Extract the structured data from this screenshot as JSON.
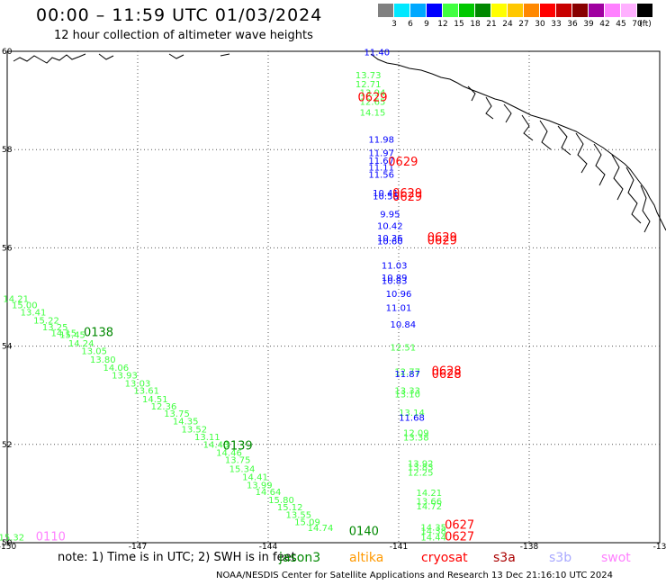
{
  "header": {
    "title": "00:00 – 11:59 UTC 01/03/2024",
    "subtitle": "12 hour collection of altimeter wave heights"
  },
  "colorbar": {
    "unit": "(ft)",
    "colors": [
      "#808080",
      "#00e8ff",
      "#00a8ff",
      "#0000ff",
      "#40ff40",
      "#00c800",
      "#008800",
      "#ffff00",
      "#ffc800",
      "#ff8800",
      "#ff0000",
      "#c80000",
      "#880000",
      "#a000a0",
      "#ff80ff",
      "#ffb0ff",
      "#000000"
    ],
    "labels": [
      "3",
      "6",
      "9",
      "12",
      "15",
      "18",
      "21",
      "24",
      "27",
      "30",
      "33",
      "36",
      "39",
      "42",
      "45",
      "70"
    ]
  },
  "map": {
    "lon_ticks": [
      "-150",
      "-147",
      "-144",
      "-141",
      "-138",
      "-13"
    ],
    "lat_ticks": [
      "60",
      "58",
      "56",
      "54",
      "52",
      "50"
    ],
    "lon_range": [
      -150,
      -135
    ],
    "lat_range": [
      50,
      60
    ],
    "grid": true
  },
  "observations": [
    {
      "lon": -141.5,
      "lat": 59.92,
      "text": "11.40",
      "color": "#0000ff"
    },
    {
      "lon": -141.7,
      "lat": 59.45,
      "text": "13.73",
      "color": "#40ff40"
    },
    {
      "lon": -141.7,
      "lat": 59.27,
      "text": "12.71",
      "color": "#40ff40"
    },
    {
      "lon": -141.6,
      "lat": 59.09,
      "text": "13.94",
      "color": "#40ff40"
    },
    {
      "lon": -141.6,
      "lat": 58.91,
      "text": "12.65",
      "color": "#40ff40"
    },
    {
      "lon": -141.6,
      "lat": 58.69,
      "text": "14.15",
      "color": "#40ff40"
    },
    {
      "lon": -141.4,
      "lat": 58.14,
      "text": "11.98",
      "color": "#0000ff"
    },
    {
      "lon": -141.4,
      "lat": 57.87,
      "text": "11.97",
      "color": "#0000ff"
    },
    {
      "lon": -141.4,
      "lat": 57.71,
      "text": "11.67",
      "color": "#0000ff"
    },
    {
      "lon": -141.4,
      "lat": 57.57,
      "text": "11.11",
      "color": "#0000ff"
    },
    {
      "lon": -141.4,
      "lat": 57.43,
      "text": "11.56",
      "color": "#0000ff"
    },
    {
      "lon": -141.3,
      "lat": 57.05,
      "text": "10.41",
      "color": "#0000ff"
    },
    {
      "lon": -141.3,
      "lat": 56.99,
      "text": "10.56",
      "color": "#0000ff"
    },
    {
      "lon": -141.2,
      "lat": 56.62,
      "text": "9.95",
      "color": "#0000ff"
    },
    {
      "lon": -141.2,
      "lat": 56.38,
      "text": "10.42",
      "color": "#0000ff"
    },
    {
      "lon": -141.2,
      "lat": 56.14,
      "text": "10.36",
      "color": "#0000ff"
    },
    {
      "lon": -141.2,
      "lat": 56.07,
      "text": "10.60",
      "color": "#0000ff"
    },
    {
      "lon": -141.1,
      "lat": 55.58,
      "text": "11.03",
      "color": "#0000ff"
    },
    {
      "lon": -141.1,
      "lat": 55.33,
      "text": "10.89",
      "color": "#0000ff"
    },
    {
      "lon": -141.1,
      "lat": 55.27,
      "text": "10.83",
      "color": "#0000ff"
    },
    {
      "lon": -141.0,
      "lat": 55.0,
      "text": "10.96",
      "color": "#0000ff"
    },
    {
      "lon": -141.0,
      "lat": 54.72,
      "text": "11.01",
      "color": "#0000ff"
    },
    {
      "lon": -140.9,
      "lat": 54.38,
      "text": "10.84",
      "color": "#0000ff"
    },
    {
      "lon": -140.9,
      "lat": 53.91,
      "text": "12.51",
      "color": "#40ff40"
    },
    {
      "lon": -140.8,
      "lat": 53.42,
      "text": "12.77",
      "color": "#40ff40"
    },
    {
      "lon": -140.8,
      "lat": 53.37,
      "text": "11.87",
      "color": "#0000ff"
    },
    {
      "lon": -140.8,
      "lat": 53.03,
      "text": "13.33",
      "color": "#40ff40"
    },
    {
      "lon": -140.8,
      "lat": 52.96,
      "text": "13.10",
      "color": "#40ff40"
    },
    {
      "lon": -140.7,
      "lat": 52.58,
      "text": "13.14",
      "color": "#40ff40"
    },
    {
      "lon": -140.7,
      "lat": 52.48,
      "text": "11.68",
      "color": "#0000ff"
    },
    {
      "lon": -140.6,
      "lat": 52.17,
      "text": "12.09",
      "color": "#40ff40"
    },
    {
      "lon": -140.6,
      "lat": 52.08,
      "text": "13.38",
      "color": "#40ff40"
    },
    {
      "lon": -140.5,
      "lat": 51.55,
      "text": "13.92",
      "color": "#40ff40"
    },
    {
      "lon": -140.5,
      "lat": 51.47,
      "text": "13.83",
      "color": "#40ff40"
    },
    {
      "lon": -140.5,
      "lat": 51.36,
      "text": "12.25",
      "color": "#40ff40"
    },
    {
      "lon": -140.3,
      "lat": 50.95,
      "text": "14.21",
      "color": "#40ff40"
    },
    {
      "lon": -140.3,
      "lat": 50.78,
      "text": "13.66",
      "color": "#40ff40"
    },
    {
      "lon": -140.3,
      "lat": 50.68,
      "text": "14.72",
      "color": "#40ff40"
    },
    {
      "lon": -140.2,
      "lat": 50.25,
      "text": "14.35",
      "color": "#40ff40"
    },
    {
      "lon": -140.2,
      "lat": 50.17,
      "text": "14.38",
      "color": "#40ff40"
    },
    {
      "lon": -140.2,
      "lat": 50.05,
      "text": "14.44",
      "color": "#40ff40"
    },
    {
      "lon": -149.8,
      "lat": 54.9,
      "text": "14.21",
      "color": "#40ff40"
    },
    {
      "lon": -149.6,
      "lat": 54.77,
      "text": "15.00",
      "color": "#40ff40"
    },
    {
      "lon": -149.4,
      "lat": 54.62,
      "text": "13.41",
      "color": "#40ff40"
    },
    {
      "lon": -149.1,
      "lat": 54.46,
      "text": "15.22",
      "color": "#40ff40"
    },
    {
      "lon": -148.9,
      "lat": 54.32,
      "text": "13.25",
      "color": "#40ff40"
    },
    {
      "lon": -148.7,
      "lat": 54.2,
      "text": "14.15",
      "color": "#40ff40"
    },
    {
      "lon": -148.5,
      "lat": 54.17,
      "text": "15.45",
      "color": "#40ff40"
    },
    {
      "lon": -148.3,
      "lat": 53.99,
      "text": "14.24",
      "color": "#40ff40"
    },
    {
      "lon": -148.0,
      "lat": 53.84,
      "text": "13.05",
      "color": "#40ff40"
    },
    {
      "lon": -147.8,
      "lat": 53.66,
      "text": "13.80",
      "color": "#40ff40"
    },
    {
      "lon": -147.5,
      "lat": 53.5,
      "text": "14.06",
      "color": "#40ff40"
    },
    {
      "lon": -147.3,
      "lat": 53.34,
      "text": "13.93",
      "color": "#40ff40"
    },
    {
      "lon": -147.0,
      "lat": 53.18,
      "text": "13.03",
      "color": "#40ff40"
    },
    {
      "lon": -146.8,
      "lat": 53.03,
      "text": "13.61",
      "color": "#40ff40"
    },
    {
      "lon": -146.6,
      "lat": 52.86,
      "text": "14.51",
      "color": "#40ff40"
    },
    {
      "lon": -146.4,
      "lat": 52.71,
      "text": "12.36",
      "color": "#40ff40"
    },
    {
      "lon": -146.1,
      "lat": 52.56,
      "text": "13.75",
      "color": "#40ff40"
    },
    {
      "lon": -145.9,
      "lat": 52.41,
      "text": "14.35",
      "color": "#40ff40"
    },
    {
      "lon": -145.7,
      "lat": 52.24,
      "text": "13.52",
      "color": "#40ff40"
    },
    {
      "lon": -145.4,
      "lat": 52.09,
      "text": "13.11",
      "color": "#40ff40"
    },
    {
      "lon": -145.2,
      "lat": 51.93,
      "text": "14.43",
      "color": "#40ff40"
    },
    {
      "lon": -144.9,
      "lat": 51.77,
      "text": "14.46",
      "color": "#40ff40"
    },
    {
      "lon": -144.7,
      "lat": 51.62,
      "text": "13.75",
      "color": "#40ff40"
    },
    {
      "lon": -144.6,
      "lat": 51.44,
      "text": "15.34",
      "color": "#40ff40"
    },
    {
      "lon": -144.3,
      "lat": 51.27,
      "text": "14.41",
      "color": "#40ff40"
    },
    {
      "lon": -144.2,
      "lat": 51.11,
      "text": "13.99",
      "color": "#40ff40"
    },
    {
      "lon": -144.0,
      "lat": 50.97,
      "text": "14.64",
      "color": "#40ff40"
    },
    {
      "lon": -143.7,
      "lat": 50.81,
      "text": "15.80",
      "color": "#40ff40"
    },
    {
      "lon": -143.5,
      "lat": 50.66,
      "text": "15.12",
      "color": "#40ff40"
    },
    {
      "lon": -143.3,
      "lat": 50.5,
      "text": "13.55",
      "color": "#40ff40"
    },
    {
      "lon": -143.1,
      "lat": 50.36,
      "text": "15.09",
      "color": "#40ff40"
    },
    {
      "lon": -142.8,
      "lat": 50.24,
      "text": "14.74",
      "color": "#40ff40"
    },
    {
      "lon": -149.9,
      "lat": 50.05,
      "text": "15.32",
      "color": "#40ff40"
    }
  ],
  "passes": [
    {
      "lon": -141.6,
      "lat": 58.98,
      "text": "0629",
      "color": "#ff0000"
    },
    {
      "lon": -140.9,
      "lat": 57.67,
      "text": "0629",
      "color": "#ff0000"
    },
    {
      "lon": -140.8,
      "lat": 57.03,
      "text": "0629",
      "color": "#ff0000"
    },
    {
      "lon": -140.8,
      "lat": 56.96,
      "text": "0629",
      "color": "#ff0000"
    },
    {
      "lon": -140.0,
      "lat": 56.14,
      "text": "0629",
      "color": "#ff0000"
    },
    {
      "lon": -140.0,
      "lat": 56.07,
      "text": "0629",
      "color": "#ff0000"
    },
    {
      "lon": -139.9,
      "lat": 53.42,
      "text": "0628",
      "color": "#ff0000"
    },
    {
      "lon": -139.9,
      "lat": 53.35,
      "text": "0628",
      "color": "#ff0000"
    },
    {
      "lon": -139.6,
      "lat": 50.28,
      "text": "0627",
      "color": "#ff0000"
    },
    {
      "lon": -139.6,
      "lat": 50.05,
      "text": "0627",
      "color": "#ff0000"
    },
    {
      "lon": -147.9,
      "lat": 54.2,
      "text": "0138",
      "color": "#008800"
    },
    {
      "lon": -144.7,
      "lat": 51.9,
      "text": "0139",
      "color": "#008800"
    },
    {
      "lon": -141.8,
      "lat": 50.16,
      "text": "0140",
      "color": "#008800"
    },
    {
      "lon": -149.0,
      "lat": 50.05,
      "text": "0110",
      "color": "#ff80ff"
    }
  ],
  "note": "note: 1) Time is in UTC; 2) SWH is in feet",
  "missions": [
    {
      "name": "jason3",
      "color": "#008800"
    },
    {
      "name": "altika",
      "color": "#ff9900"
    },
    {
      "name": "cryosat",
      "color": "#ff0000"
    },
    {
      "name": "s3a",
      "color": "#aa0000"
    },
    {
      "name": "s3b",
      "color": "#a8a8ff"
    },
    {
      "name": "swot",
      "color": "#ff80ff"
    }
  ],
  "footer": "NOAA/NESDIS Center for Satellite Applications and Research   13 Dec 21:16:10 UTC 2024"
}
